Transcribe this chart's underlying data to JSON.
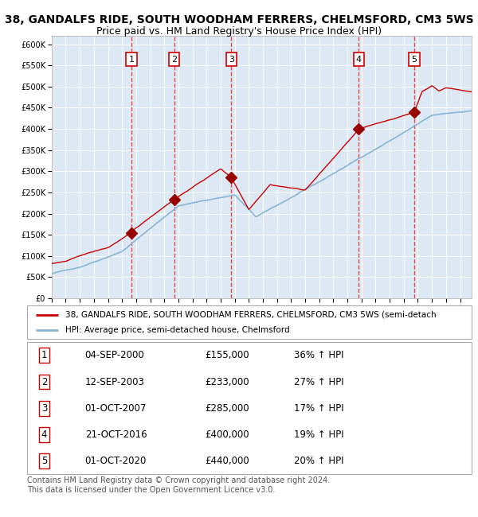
{
  "title1": "38, GANDALFS RIDE, SOUTH WOODHAM FERRERS, CHELMSFORD, CM3 5WS",
  "title2": "Price paid vs. HM Land Registry's House Price Index (HPI)",
  "bg_color": "#dce9f5",
  "grid_color": "#ffffff",
  "red_line_color": "#cc0000",
  "blue_line_color": "#8ab4d4",
  "sale_marker_color": "#990000",
  "vline_color": "#ee4444",
  "ylim": [
    0,
    620000
  ],
  "yticks": [
    0,
    50000,
    100000,
    150000,
    200000,
    250000,
    300000,
    350000,
    400000,
    450000,
    500000,
    550000,
    600000
  ],
  "sales": [
    {
      "price": 155000,
      "label": "1",
      "x": 2000.67
    },
    {
      "price": 233000,
      "label": "2",
      "x": 2003.7
    },
    {
      "price": 285000,
      "label": "3",
      "x": 2007.75
    },
    {
      "price": 400000,
      "label": "4",
      "x": 2016.81
    },
    {
      "price": 440000,
      "label": "5",
      "x": 2020.75
    }
  ],
  "legend_entries": [
    {
      "label": "38, GANDALFS RIDE, SOUTH WOODHAM FERRERS, CHELMSFORD, CM3 5WS (semi-detach",
      "color": "#cc0000"
    },
    {
      "label": "HPI: Average price, semi-detached house, Chelmsford",
      "color": "#8ab4d4"
    }
  ],
  "table_rows": [
    {
      "num": "1",
      "date": "04-SEP-2000",
      "price": "£155,000",
      "hpi": "36% ↑ HPI"
    },
    {
      "num": "2",
      "date": "12-SEP-2003",
      "price": "£233,000",
      "hpi": "27% ↑ HPI"
    },
    {
      "num": "3",
      "date": "01-OCT-2007",
      "price": "£285,000",
      "hpi": "17% ↑ HPI"
    },
    {
      "num": "4",
      "date": "21-OCT-2016",
      "price": "£400,000",
      "hpi": "19% ↑ HPI"
    },
    {
      "num": "5",
      "date": "01-OCT-2020",
      "price": "£440,000",
      "hpi": "20% ↑ HPI"
    }
  ],
  "footer": "Contains HM Land Registry data © Crown copyright and database right 2024.\nThis data is licensed under the Open Government Licence v3.0.",
  "xmin": 1995.0,
  "xmax": 2024.83
}
